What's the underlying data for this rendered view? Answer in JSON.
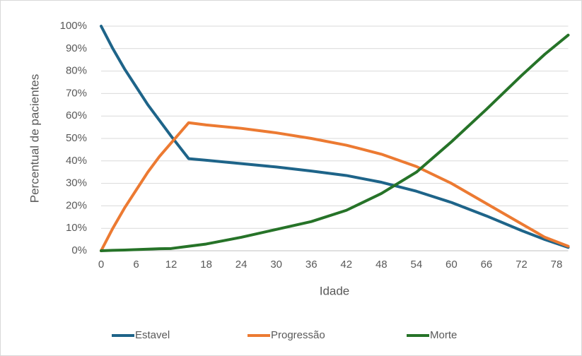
{
  "chart_data": {
    "type": "line",
    "x_label": "Idade",
    "y_label": "Percentual de pacientes",
    "x": [
      0,
      2,
      4,
      6,
      8,
      10,
      12,
      15,
      18,
      24,
      30,
      36,
      42,
      48,
      54,
      60,
      66,
      72,
      76,
      80
    ],
    "series": [
      {
        "name": "Estavel",
        "color": "#1e6489",
        "values": [
          100,
          90,
          81,
          73,
          65,
          58,
          51,
          41,
          40.3,
          38.8,
          37.3,
          35.5,
          33.5,
          30.5,
          26.5,
          21.5,
          15.5,
          9,
          5,
          1.5
        ]
      },
      {
        "name": "Progressão",
        "color": "#ec7a32",
        "values": [
          0,
          10,
          19,
          27,
          35,
          42,
          48,
          57,
          56,
          54.5,
          52.5,
          50,
          47,
          43,
          37.5,
          30,
          21,
          12,
          6,
          2
        ]
      },
      {
        "name": "Morte",
        "color": "#267328",
        "values": [
          0,
          0.2,
          0.3,
          0.5,
          0.7,
          0.9,
          1,
          2,
          3,
          6,
          9.5,
          13,
          18,
          25.5,
          35,
          48.5,
          63,
          78,
          87.5,
          96
        ]
      }
    ],
    "xlim": [
      0,
      80
    ],
    "xticks": [
      0,
      6,
      12,
      18,
      24,
      30,
      36,
      42,
      48,
      54,
      60,
      66,
      72,
      78
    ],
    "ylim": [
      0,
      100
    ],
    "yticks": [
      {
        "value": 0,
        "label": "0%"
      },
      {
        "value": 10,
        "label": "10%"
      },
      {
        "value": 20,
        "label": "20%"
      },
      {
        "value": 30,
        "label": "30%"
      },
      {
        "value": 40,
        "label": "40%"
      },
      {
        "value": 50,
        "label": "50%"
      },
      {
        "value": 60,
        "label": "60%"
      },
      {
        "value": 70,
        "label": "70%"
      },
      {
        "value": 80,
        "label": "80%"
      },
      {
        "value": 90,
        "label": "90%"
      },
      {
        "value": 100,
        "label": "100%"
      }
    ],
    "grid": true,
    "legend": "bottom"
  }
}
